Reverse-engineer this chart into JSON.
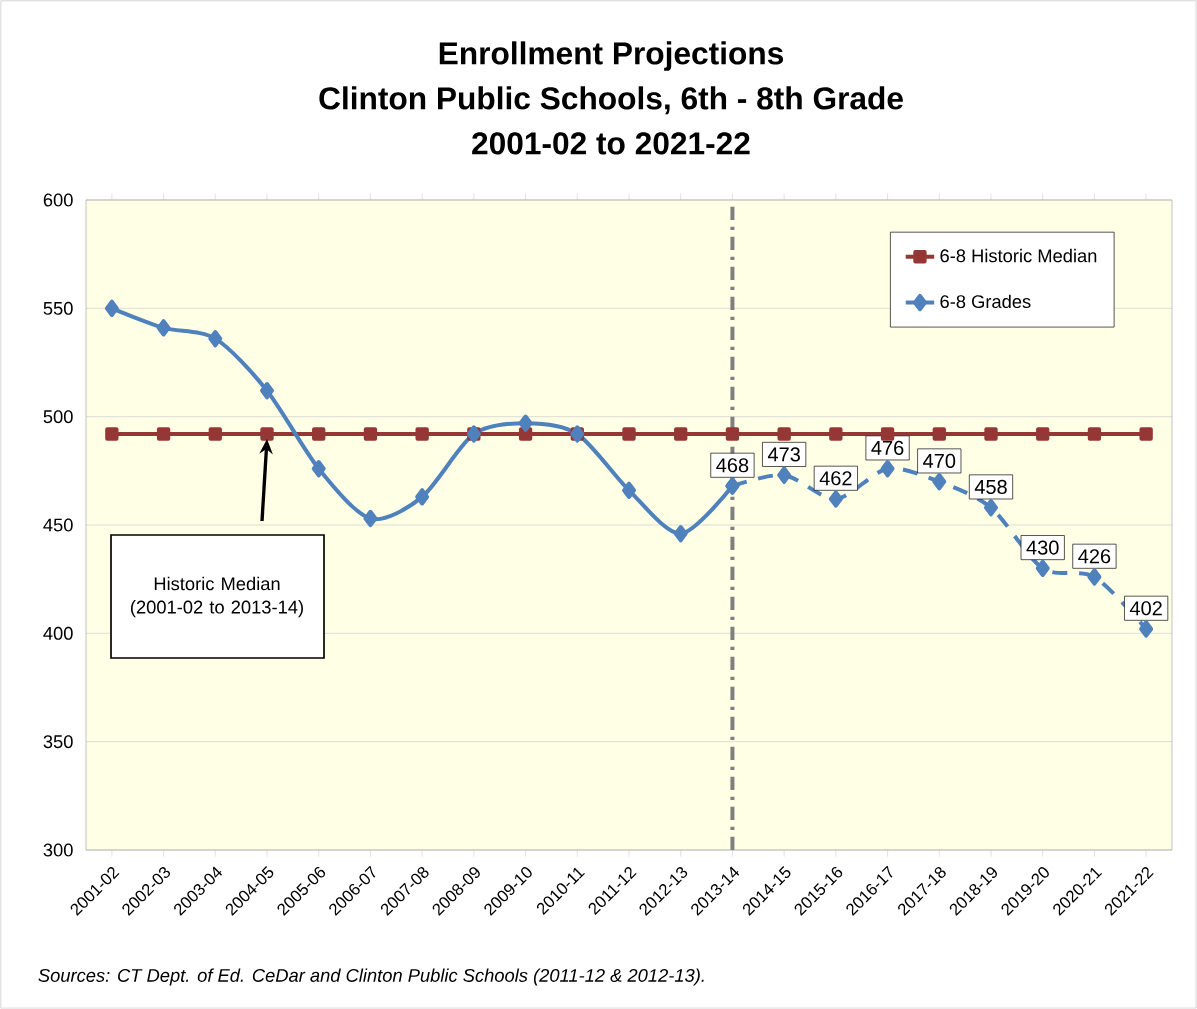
{
  "chart_data": {
    "type": "line",
    "title": "Enrollment Projections",
    "subtitle": "Clinton Public Schools, 6th - 8th Grade 2001-02 to 2021-22",
    "categories": [
      "2001-02",
      "2002-03",
      "2003-04",
      "2004-05",
      "2005-06",
      "2006-07",
      "2007-08",
      "2008-09",
      "2009-10",
      "2010-11",
      "2011-12",
      "2012-13",
      "2013-14",
      "2014-15",
      "2015-16",
      "2016-17",
      "2017-18",
      "2018-19",
      "2019-20",
      "2020-21",
      "2021-22"
    ],
    "series": [
      {
        "name": "6-8 Historic Median",
        "color": "#953735",
        "marker": "square",
        "values": [
          492,
          492,
          492,
          492,
          492,
          492,
          492,
          492,
          492,
          492,
          492,
          492,
          492,
          492,
          492,
          492,
          492,
          492,
          492,
          492,
          492
        ]
      },
      {
        "name": "6-8 Grades",
        "color": "#4f81bd",
        "marker": "diamond",
        "values": [
          550,
          541,
          536,
          512,
          476,
          453,
          463,
          492,
          497,
          492,
          466,
          446,
          468,
          null,
          null,
          null,
          null,
          null,
          null,
          null,
          null
        ]
      },
      {
        "color": "#4f81bd",
        "marker": "diamond",
        "line_style": "dashed",
        "values": [
          null,
          null,
          null,
          null,
          null,
          null,
          null,
          null,
          null,
          null,
          null,
          null,
          468,
          473,
          462,
          476,
          470,
          458,
          430,
          426,
          402
        ],
        "value_labels": [
          null,
          null,
          null,
          null,
          null,
          null,
          null,
          null,
          null,
          null,
          null,
          null,
          "468",
          "473",
          "462",
          "476",
          "470",
          "458",
          "430",
          "426",
          "402"
        ]
      }
    ],
    "ylim": [
      300,
      600
    ],
    "yticks": [
      300,
      350,
      400,
      450,
      500,
      550,
      600
    ],
    "grid": "y",
    "legend": "top right",
    "ref_lines": [
      {
        "axis": "x",
        "value": "2013-14",
        "color": "#7f7f7f",
        "line_style": "dashdot"
      }
    ],
    "annotations": [
      "Historic Median (2001-02 to 2013-14)",
      "Sources: CT Dept. of Ed. CeDar and Clinton Public Schools (2011-12 & 2012-13)."
    ]
  }
}
